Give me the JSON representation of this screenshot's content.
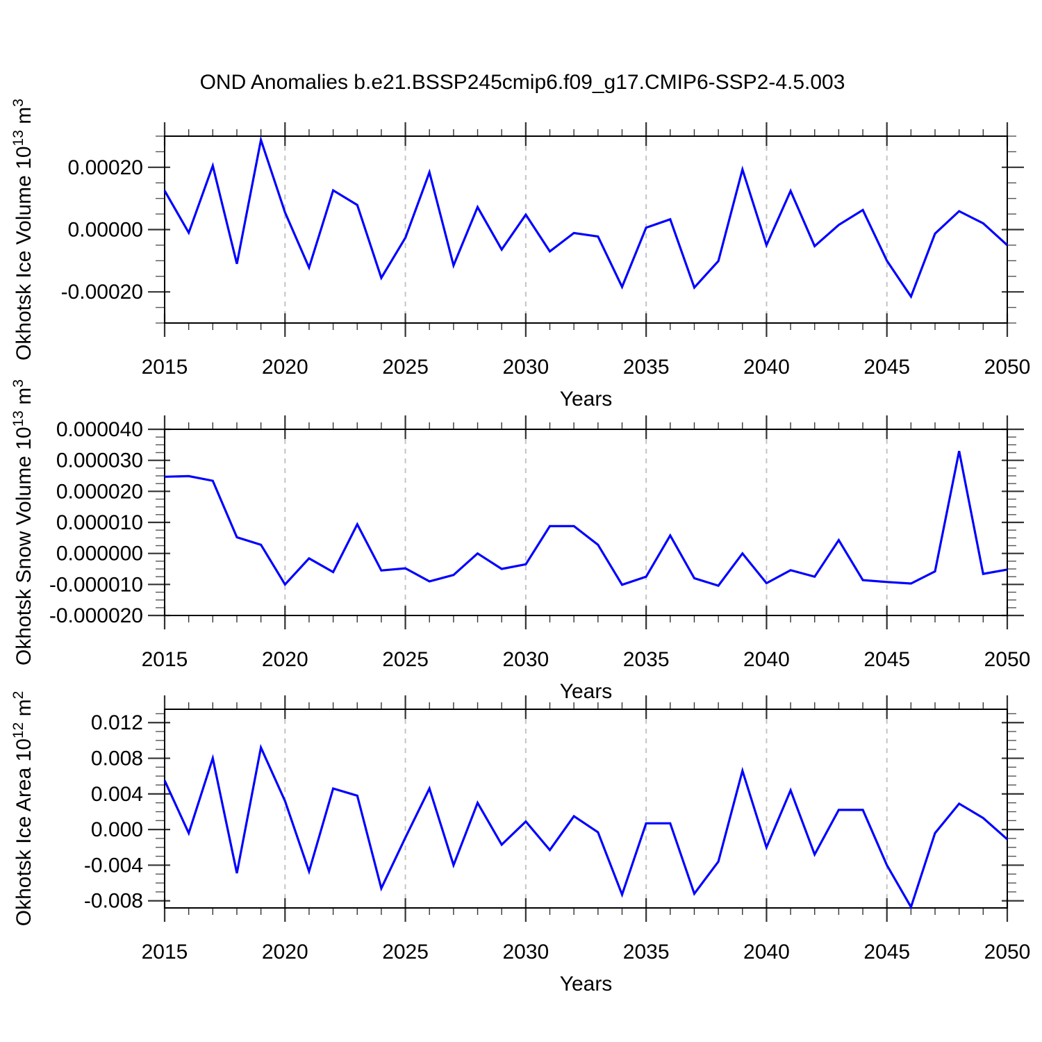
{
  "title": "OND Anomalies b.e21.BSSP245cmip6.f09_g17.CMIP6-SSP2-4.5.003",
  "xlabel": "Years",
  "line_color": "#0000ff",
  "grid_color": "#c4c4c4",
  "years_range": [
    2015,
    2050
  ],
  "xticks_major": [
    2015,
    2020,
    2025,
    2030,
    2035,
    2040,
    2045,
    2050
  ],
  "xtick_labels": [
    "2015",
    "2020",
    "2025",
    "2030",
    "2035",
    "2040",
    "2045",
    "2050"
  ],
  "grid_years": [
    2020,
    2025,
    2030,
    2035,
    2040,
    2045
  ],
  "chart_data": [
    {
      "type": "line",
      "name": "okhotsk-ice-volume",
      "ylabel_text": "Okhotsk Ice Volume 10^13 m^3",
      "ylabel_segments": [
        {
          "t": "Okhotsk Ice Volume 10"
        },
        {
          "t": "13",
          "sup": true
        },
        {
          "t": " m"
        },
        {
          "t": "3",
          "sup": true
        }
      ],
      "xlabel": "Years",
      "ylim": [
        -0.0003,
        0.0003
      ],
      "yticks_major": [
        0.0002,
        0.0,
        -0.0002
      ],
      "ytick_labels": [
        "0.00020",
        "0.00000",
        "-0.00020"
      ],
      "y_minor_step": 5e-05,
      "x": [
        2015,
        2016,
        2017,
        2018,
        2019,
        2020,
        2021,
        2022,
        2023,
        2024,
        2025,
        2026,
        2027,
        2028,
        2029,
        2030,
        2031,
        2032,
        2033,
        2034,
        2035,
        2036,
        2037,
        2038,
        2039,
        2040,
        2041,
        2042,
        2043,
        2044,
        2045,
        2046,
        2047,
        2048,
        2049,
        2050
      ],
      "values": [
        0.000125,
        -1e-05,
        0.000205,
        -0.00011,
        0.000288,
        5.5e-05,
        -0.000122,
        0.000126,
        7.9e-05,
        -0.000155,
        -2.6e-05,
        0.000184,
        -0.000115,
        7.2e-05,
        -6.4e-05,
        4.8e-05,
        -7e-05,
        -1.1e-05,
        -2.2e-05,
        -0.000184,
        6e-06,
        3.3e-05,
        -0.000186,
        -0.000101,
        0.000193,
        -5e-05,
        0.000124,
        -5.3e-05,
        1.5e-05,
        6.3e-05,
        -0.0001,
        -0.000215,
        -1.3e-05,
        5.9e-05,
        2e-05,
        -5e-05
      ]
    },
    {
      "type": "line",
      "name": "okhotsk-snow-volume",
      "ylabel_text": "Okhotsk Snow Volume 10^13 m^3",
      "ylabel_segments": [
        {
          "t": "Okhotsk Snow Volume 10"
        },
        {
          "t": "13",
          "sup": true
        },
        {
          "t": " m"
        },
        {
          "t": "3",
          "sup": true
        }
      ],
      "xlabel": "Years",
      "ylim": [
        -2e-05,
        4e-05
      ],
      "yticks_major": [
        4e-05,
        3e-05,
        2e-05,
        1e-05,
        0.0,
        -1e-05,
        -2e-05
      ],
      "ytick_labels": [
        "0.000040",
        "0.000030",
        "0.000020",
        "0.000010",
        "0.000000",
        "-0.000010",
        "-0.000020"
      ],
      "y_minor_step": 2.5e-06,
      "x": [
        2015,
        2016,
        2017,
        2018,
        2019,
        2020,
        2021,
        2022,
        2023,
        2024,
        2025,
        2026,
        2027,
        2028,
        2029,
        2030,
        2031,
        2032,
        2033,
        2034,
        2035,
        2036,
        2037,
        2038,
        2039,
        2040,
        2041,
        2042,
        2043,
        2044,
        2045,
        2046,
        2047,
        2048,
        2049,
        2050
      ],
      "values": [
        2.47e-05,
        2.49e-05,
        2.34e-05,
        5.2e-06,
        2.8e-06,
        -1e-05,
        -1.6e-06,
        -6e-06,
        9.4e-06,
        -5.5e-06,
        -4.8e-06,
        -9e-06,
        -6.95e-06,
        0.0,
        -5e-06,
        -3.5e-06,
        8.8e-06,
        8.8e-06,
        2.8e-06,
        -1.01e-05,
        -7.5e-06,
        5.8e-06,
        -8e-06,
        -1.04e-05,
        0.0,
        -9.6e-06,
        -5.4e-06,
        -7.5e-06,
        4.3e-06,
        -8.6e-06,
        -9.2e-06,
        -9.7e-06,
        -5.8e-06,
        3.3e-05,
        -6.6e-06,
        -5.2e-06
      ]
    },
    {
      "type": "line",
      "name": "okhotsk-ice-area",
      "ylabel_text": "Okhotsk Ice Area 10^12 m^2",
      "ylabel_segments": [
        {
          "t": "Okhotsk Ice Area 10"
        },
        {
          "t": "12",
          "sup": true
        },
        {
          "t": " m"
        },
        {
          "t": "2",
          "sup": true
        }
      ],
      "xlabel": "Years",
      "ylim": [
        -0.0088,
        0.0135
      ],
      "yticks_major": [
        0.012,
        0.008,
        0.004,
        0.0,
        -0.004,
        -0.008
      ],
      "ytick_labels": [
        "0.012",
        "0.008",
        "0.004",
        "0.000",
        "-0.004",
        "-0.008"
      ],
      "y_minor_step": 0.001,
      "x": [
        2015,
        2016,
        2017,
        2018,
        2019,
        2020,
        2021,
        2022,
        2023,
        2024,
        2025,
        2026,
        2027,
        2028,
        2029,
        2030,
        2031,
        2032,
        2033,
        2034,
        2035,
        2036,
        2037,
        2038,
        2039,
        2040,
        2041,
        2042,
        2043,
        2044,
        2045,
        2046,
        2047,
        2048,
        2049,
        2050
      ],
      "values": [
        0.0055,
        -0.0004,
        0.008,
        -0.0049,
        0.0092,
        0.0032,
        -0.0047,
        0.0046,
        0.0038,
        -0.0066,
        -0.0009,
        0.0046,
        -0.004,
        0.003,
        -0.0017,
        0.0009,
        -0.0023,
        0.0015,
        -0.0003,
        -0.0073,
        0.0007,
        0.0007,
        -0.0072,
        -0.0036,
        0.0066,
        -0.002,
        0.0044,
        -0.0028,
        0.0022,
        0.0022,
        -0.004,
        -0.0087,
        -0.0004,
        0.0029,
        0.0013,
        -0.0011
      ]
    }
  ]
}
